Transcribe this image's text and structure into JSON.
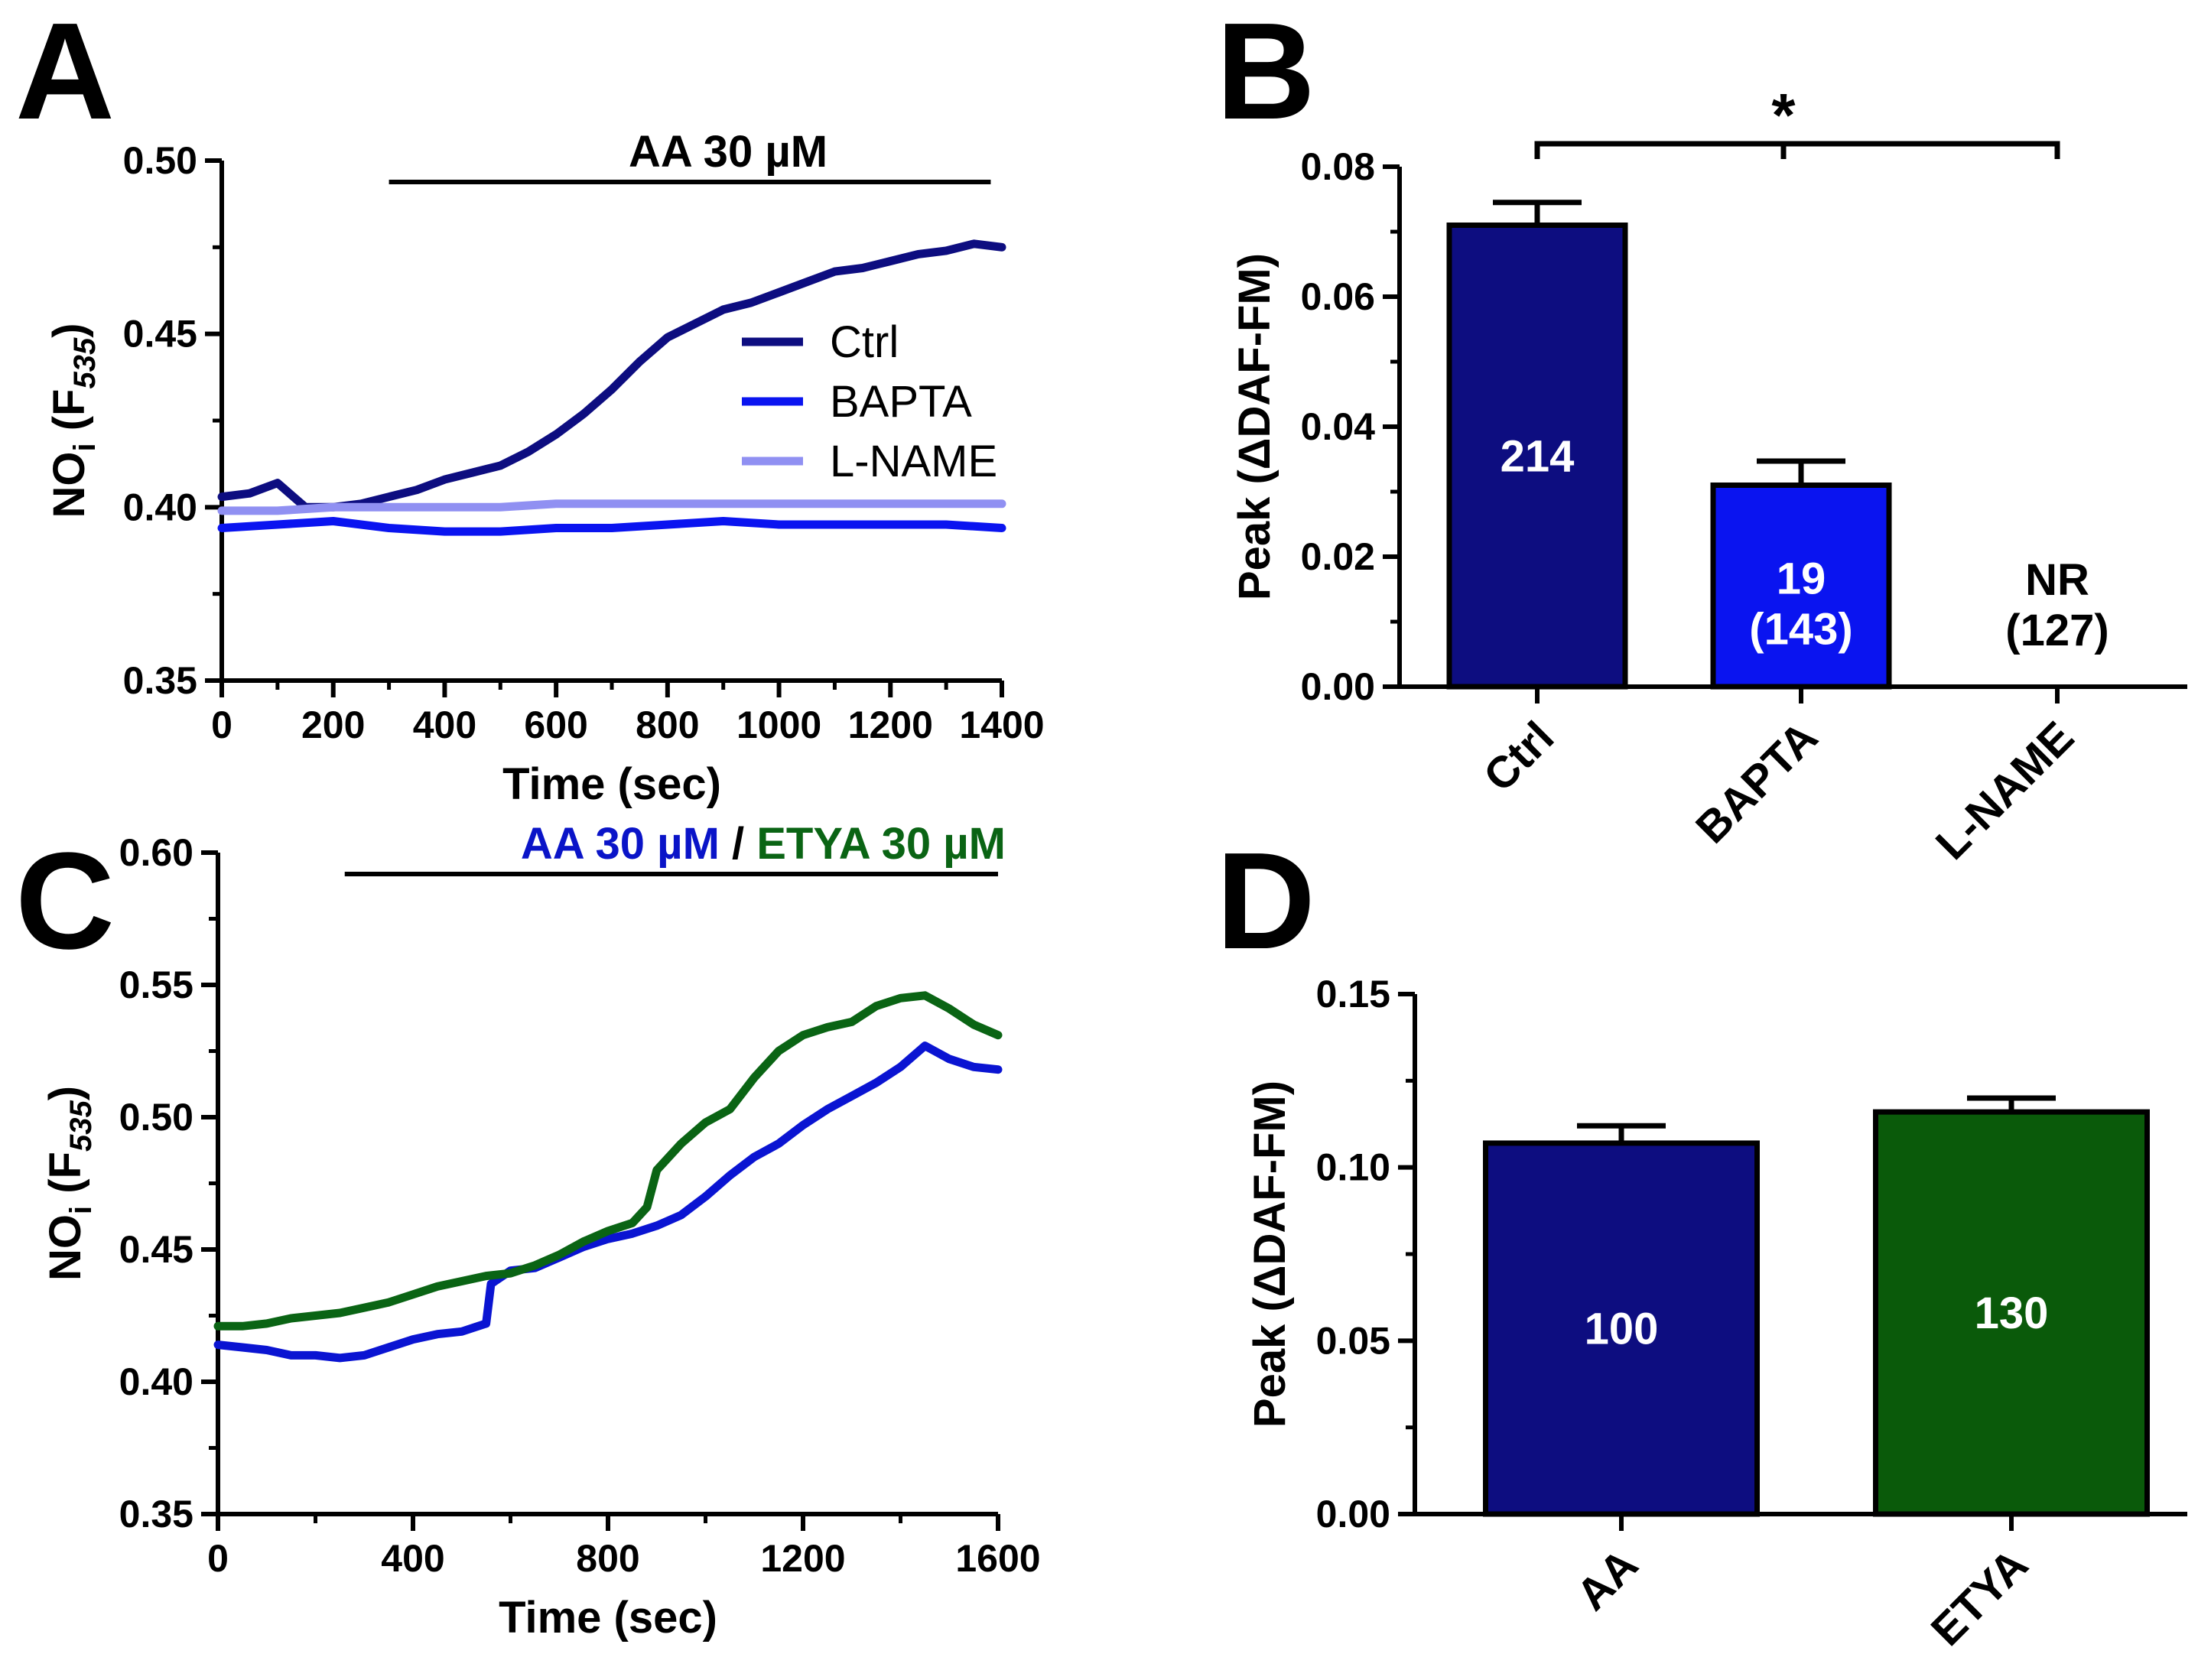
{
  "chart_data": [
    {
      "panel": "A",
      "type": "line",
      "title": "",
      "xlabel": "Time (sec)",
      "ylabel_main": "NO",
      "ylabel_sub": "i",
      "ylabel_paren_open": " (F",
      "ylabel_sub2": "535",
      "ylabel_paren_close": ")",
      "xlim": [
        0,
        1400
      ],
      "ylim": [
        0.35,
        0.5
      ],
      "xticks": [
        0,
        200,
        400,
        600,
        800,
        1000,
        1200,
        1400
      ],
      "xtick_labels": [
        "0",
        "200",
        "400",
        "600",
        "800",
        "1000",
        "1200",
        "1400"
      ],
      "yticks": [
        0.35,
        0.4,
        0.45,
        0.5
      ],
      "ytick_labels": [
        "0.35",
        "0.40",
        "0.45",
        "0.50"
      ],
      "treatment": {
        "label": "AA 30 µM",
        "x_start": 300,
        "x_end": 1380
      },
      "legend_position": "top-right",
      "series": [
        {
          "name": "Ctrl",
          "color": "#0d0d80",
          "x": [
            0,
            50,
            100,
            150,
            200,
            250,
            300,
            350,
            400,
            450,
            500,
            550,
            600,
            650,
            700,
            750,
            800,
            850,
            900,
            950,
            1000,
            1050,
            1100,
            1150,
            1200,
            1250,
            1300,
            1350,
            1400
          ],
          "y": [
            0.403,
            0.404,
            0.407,
            0.4,
            0.4,
            0.401,
            0.403,
            0.405,
            0.408,
            0.41,
            0.412,
            0.416,
            0.421,
            0.427,
            0.434,
            0.442,
            0.449,
            0.453,
            0.457,
            0.459,
            0.462,
            0.465,
            0.468,
            0.469,
            0.471,
            0.473,
            0.474,
            0.476,
            0.475
          ]
        },
        {
          "name": "BAPTA",
          "color": "#0a14f0",
          "x": [
            0,
            100,
            200,
            300,
            400,
            500,
            600,
            700,
            800,
            900,
            1000,
            1100,
            1200,
            1300,
            1400
          ],
          "y": [
            0.394,
            0.395,
            0.396,
            0.394,
            0.393,
            0.393,
            0.394,
            0.394,
            0.395,
            0.396,
            0.395,
            0.395,
            0.395,
            0.395,
            0.394
          ]
        },
        {
          "name": "L-NAME",
          "color": "#9090f2",
          "x": [
            0,
            100,
            200,
            300,
            400,
            500,
            600,
            700,
            800,
            900,
            1000,
            1100,
            1200,
            1300,
            1400
          ],
          "y": [
            0.399,
            0.399,
            0.4,
            0.4,
            0.4,
            0.4,
            0.401,
            0.401,
            0.401,
            0.401,
            0.401,
            0.401,
            0.401,
            0.401,
            0.401
          ]
        }
      ]
    },
    {
      "panel": "B",
      "type": "bar",
      "title": "",
      "ylabel": "Peak (ΔDAF-FM)",
      "ylim": [
        0,
        0.08
      ],
      "yticks": [
        0,
        0.02,
        0.04,
        0.06,
        0.08
      ],
      "ytick_labels": [
        "0.00",
        "0.02",
        "0.04",
        "0.06",
        "0.08"
      ],
      "categories": [
        "Ctrl",
        "BAPTA",
        "L-NAME"
      ],
      "values": [
        0.071,
        0.031,
        0
      ],
      "errors": [
        0.0035,
        0.0037,
        0
      ],
      "colors": [
        "#0d0d80",
        "#0a14f0",
        "#ffffff"
      ],
      "bar_labels": [
        [
          "214"
        ],
        [
          "19",
          "(143)"
        ],
        [
          "NR",
          "(127)"
        ]
      ],
      "significance": {
        "from": "Ctrl",
        "to": "L-NAME",
        "label": "*"
      }
    },
    {
      "panel": "C",
      "type": "line",
      "title": "",
      "xlabel": "Time (sec)",
      "ylabel_main": "NO",
      "ylabel_sub": "i",
      "ylabel_paren_open": " (F",
      "ylabel_sub2": "535",
      "ylabel_paren_close": ")",
      "xlim": [
        0,
        1600
      ],
      "ylim": [
        0.35,
        0.6
      ],
      "xticks": [
        0,
        400,
        800,
        1200,
        1600
      ],
      "xtick_labels": [
        "0",
        "400",
        "800",
        "1200",
        "1600"
      ],
      "yticks": [
        0.35,
        0.4,
        0.45,
        0.5,
        0.55,
        0.6
      ],
      "ytick_labels": [
        "0.35",
        "0.40",
        "0.45",
        "0.50",
        "0.55",
        "0.60"
      ],
      "treatment": {
        "label_a": "AA 30 µM",
        "separator": " / ",
        "label_b": "ETYA 30 µM",
        "color_a": "#0a14c8",
        "color_b": "#0a6414",
        "x_start": 260,
        "x_end": 1600
      },
      "series": [
        {
          "name": "AA",
          "color": "#0a14d2",
          "x": [
            0,
            50,
            100,
            150,
            200,
            250,
            300,
            350,
            400,
            450,
            500,
            550,
            560,
            600,
            650,
            700,
            750,
            800,
            850,
            900,
            950,
            1000,
            1050,
            1100,
            1150,
            1200,
            1250,
            1300,
            1350,
            1400,
            1450,
            1500,
            1550,
            1600
          ],
          "y": [
            0.414,
            0.413,
            0.412,
            0.41,
            0.41,
            0.409,
            0.41,
            0.413,
            0.416,
            0.418,
            0.419,
            0.422,
            0.437,
            0.442,
            0.443,
            0.447,
            0.451,
            0.454,
            0.456,
            0.459,
            0.463,
            0.47,
            0.478,
            0.485,
            0.49,
            0.497,
            0.503,
            0.508,
            0.513,
            0.519,
            0.527,
            0.522,
            0.519,
            0.518
          ]
        },
        {
          "name": "ETYA",
          "color": "#0a6414",
          "x": [
            0,
            50,
            100,
            150,
            200,
            250,
            300,
            350,
            400,
            450,
            500,
            550,
            600,
            650,
            700,
            750,
            800,
            850,
            880,
            900,
            950,
            1000,
            1050,
            1100,
            1150,
            1200,
            1250,
            1300,
            1350,
            1400,
            1450,
            1500,
            1550,
            1600
          ],
          "y": [
            0.421,
            0.421,
            0.422,
            0.424,
            0.425,
            0.426,
            0.428,
            0.43,
            0.433,
            0.436,
            0.438,
            0.44,
            0.441,
            0.444,
            0.448,
            0.453,
            0.457,
            0.46,
            0.466,
            0.48,
            0.49,
            0.498,
            0.503,
            0.515,
            0.525,
            0.531,
            0.534,
            0.536,
            0.542,
            0.545,
            0.546,
            0.541,
            0.535,
            0.531
          ]
        }
      ]
    },
    {
      "panel": "D",
      "type": "bar",
      "title": "",
      "ylabel": "Peak (ΔDAF-FM)",
      "ylim": [
        0,
        0.15
      ],
      "yticks": [
        0,
        0.05,
        0.1,
        0.15
      ],
      "ytick_labels": [
        "0.00",
        "0.05",
        "0.10",
        "0.15"
      ],
      "categories": [
        "AA",
        "ETYA"
      ],
      "values": [
        0.107,
        0.116
      ],
      "errors": [
        0.005,
        0.004
      ],
      "colors": [
        "#0d0d80",
        "#0a5a0a"
      ],
      "bar_labels": [
        [
          "100"
        ],
        [
          "130"
        ]
      ]
    }
  ]
}
